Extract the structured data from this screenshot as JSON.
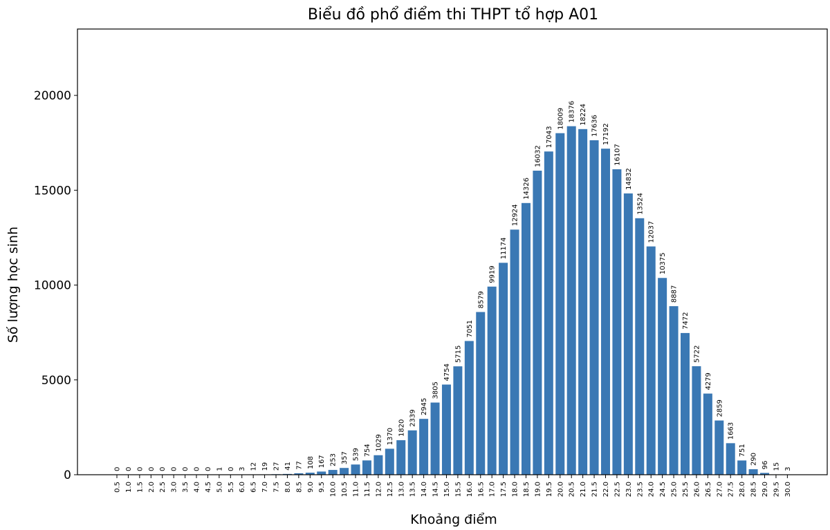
{
  "chart_data": {
    "type": "bar",
    "title": "Biểu đồ phổ điểm thi THPT tổ hợp A01",
    "xlabel": "Khoảng điểm",
    "ylabel": "Số lượng học sinh",
    "ylim": [
      0,
      23500
    ],
    "yticks": [
      0,
      5000,
      10000,
      15000,
      20000
    ],
    "grid": false,
    "bar_color": "#3a78b4",
    "categories": [
      "0.5",
      "1.0",
      "1.5",
      "2.0",
      "2.5",
      "3.0",
      "3.5",
      "4.0",
      "4.5",
      "5.0",
      "5.5",
      "6.0",
      "6.5",
      "7.0",
      "7.5",
      "8.0",
      "8.5",
      "9.0",
      "9.5",
      "10.0",
      "10.5",
      "11.0",
      "11.5",
      "12.0",
      "12.5",
      "13.0",
      "13.5",
      "14.0",
      "14.5",
      "15.0",
      "15.5",
      "16.0",
      "16.5",
      "17.0",
      "17.5",
      "18.0",
      "18.5",
      "19.0",
      "19.5",
      "20.0",
      "20.5",
      "21.0",
      "21.5",
      "22.0",
      "22.5",
      "23.0",
      "23.5",
      "24.0",
      "24.5",
      "25.0",
      "25.5",
      "26.0",
      "26.5",
      "27.0",
      "27.5",
      "28.0",
      "28.5",
      "29.0",
      "29.5",
      "30.0"
    ],
    "values": [
      0,
      0,
      0,
      0,
      0,
      0,
      0,
      0,
      0,
      1,
      0,
      3,
      12,
      19,
      27,
      41,
      77,
      108,
      167,
      253,
      357,
      539,
      754,
      1029,
      1370,
      1820,
      2339,
      2945,
      3805,
      4754,
      5715,
      7051,
      8579,
      9919,
      11174,
      12924,
      14326,
      16032,
      17043,
      18009,
      18376,
      18224,
      17636,
      17192,
      16107,
      14832,
      13524,
      12037,
      10375,
      8887,
      7472,
      5722,
      4279,
      2859,
      1663,
      751,
      290,
      96,
      15,
      3
    ]
  }
}
